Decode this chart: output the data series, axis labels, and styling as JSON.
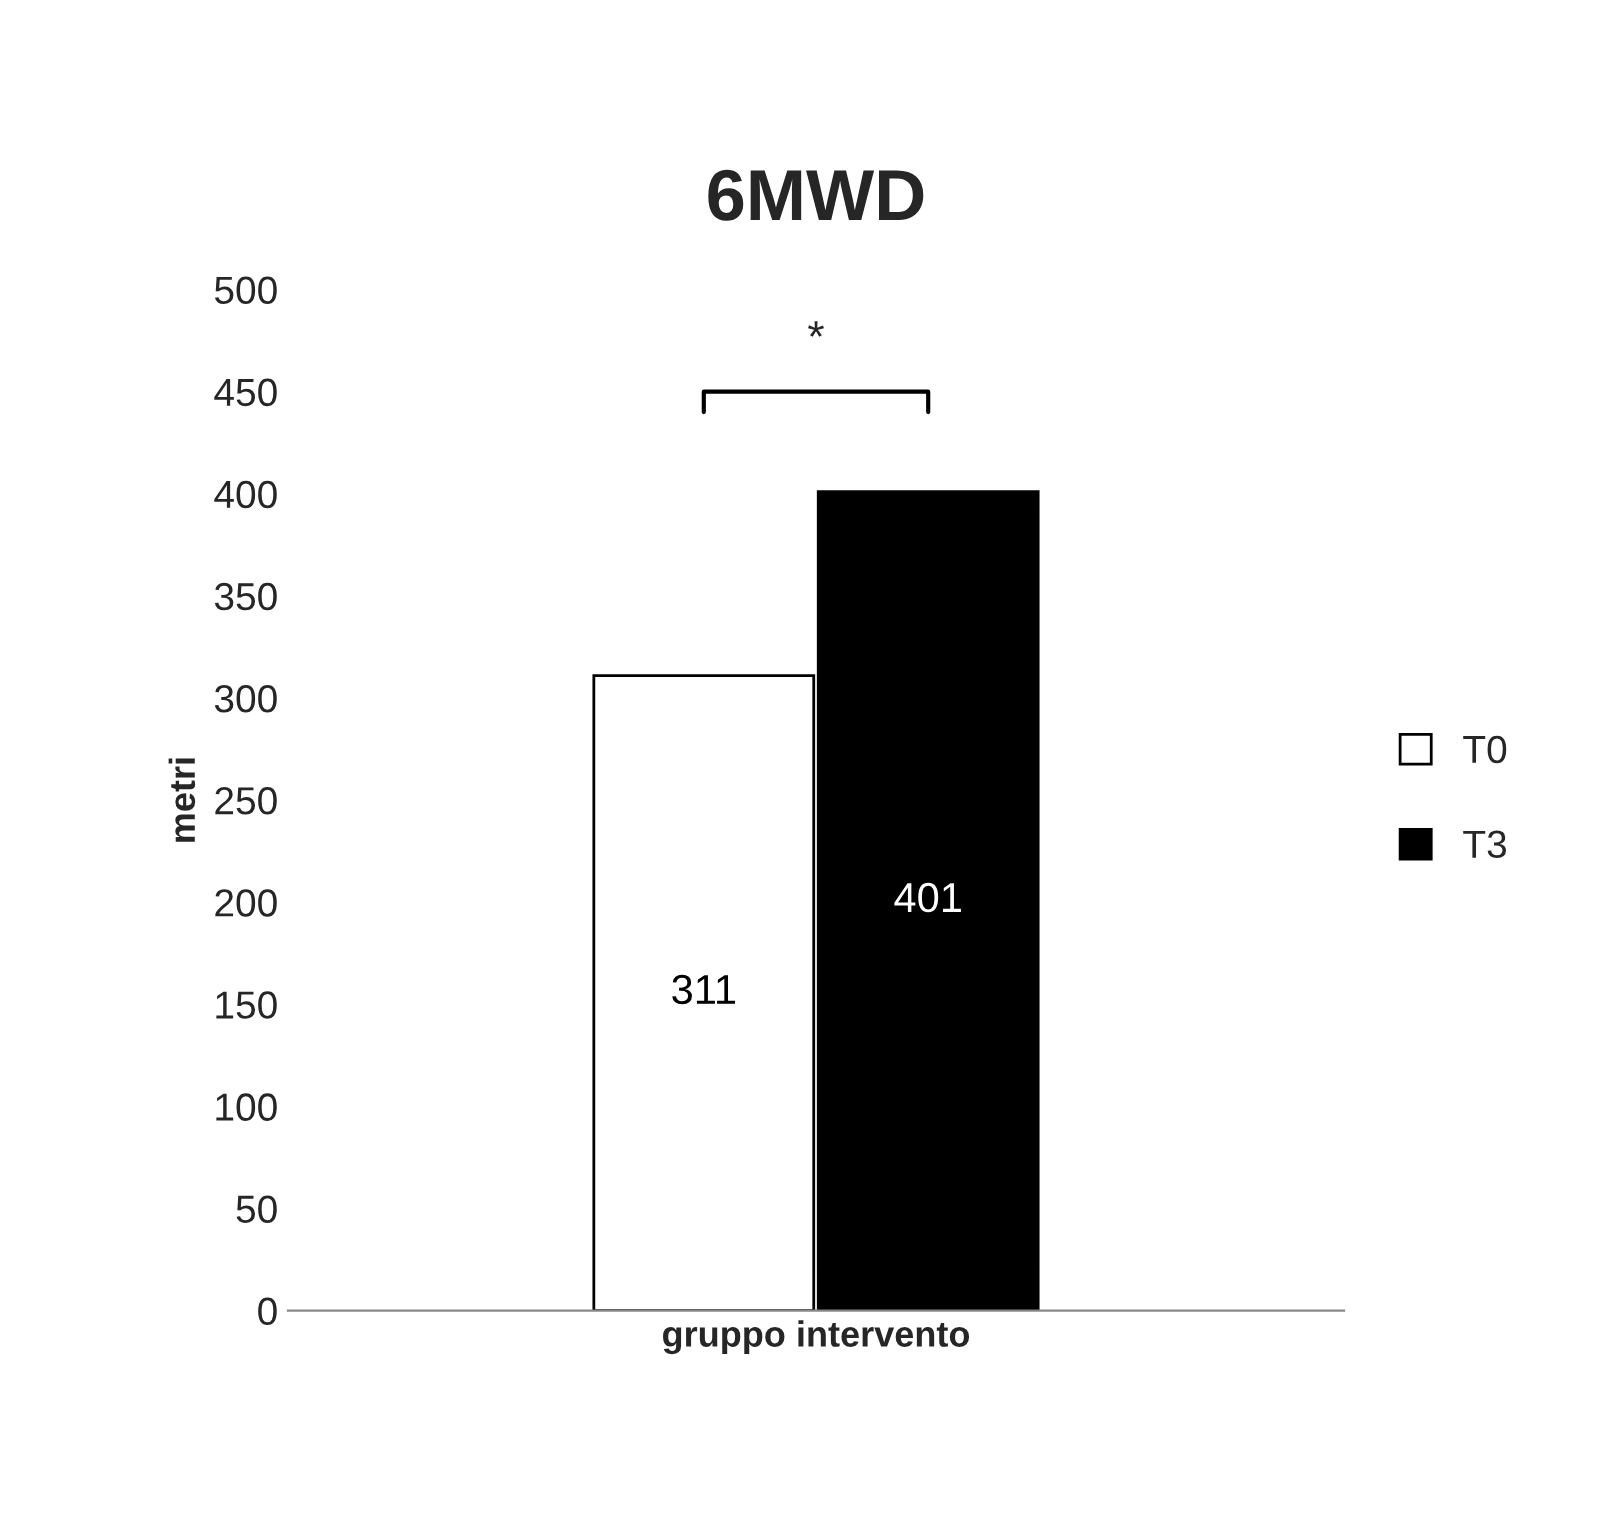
{
  "chart_data": {
    "type": "bar",
    "title": "6MWD",
    "ylabel": "metri",
    "categories": [
      "gruppo intervento"
    ],
    "series": [
      {
        "name": "T0",
        "color": "#ffffff",
        "values": [
          311
        ]
      },
      {
        "name": "T3",
        "color": "#000000",
        "values": [
          401
        ]
      }
    ],
    "ylim": [
      0,
      500
    ],
    "yticks": [
      0,
      50,
      100,
      150,
      200,
      250,
      300,
      350,
      400,
      450,
      500
    ],
    "grid": false,
    "legend": "right",
    "data_labels": true,
    "annotations": [
      "*"
    ]
  }
}
